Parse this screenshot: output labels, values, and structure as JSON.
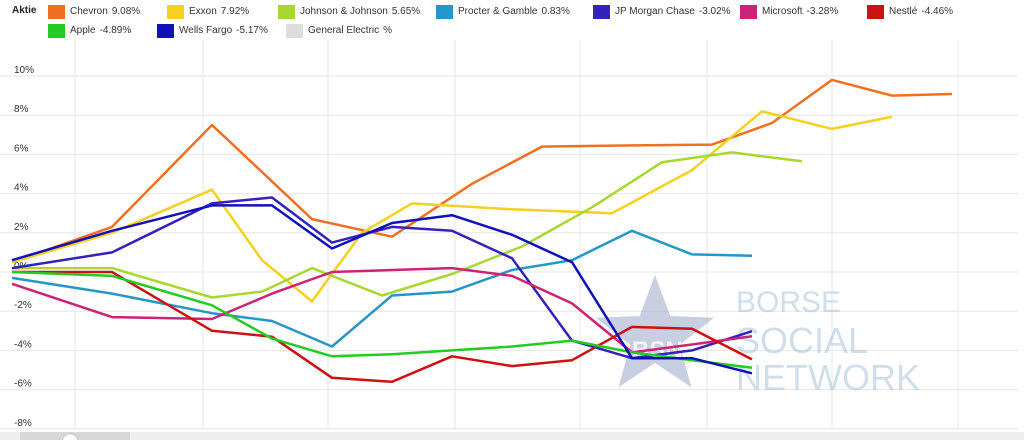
{
  "legend": {
    "title": "Aktie"
  },
  "chart_data": {
    "type": "line",
    "ylim": [
      -8,
      11
    ],
    "y_ticks": [
      -8,
      -6,
      -4,
      -2,
      0,
      2,
      4,
      6,
      8,
      10
    ],
    "y_tick_labels": [
      "-8%",
      "-6%",
      "-4%",
      "-2%",
      "0%",
      "2%",
      "4%",
      "6%",
      "8%",
      "10%"
    ],
    "grid": true,
    "legend_position": "top",
    "series": [
      {
        "name": "Chevron",
        "value_label": "9.08%",
        "color": "#f07020",
        "points": [
          [
            0,
            0.5
          ],
          [
            1,
            2.3
          ],
          [
            2,
            7.5
          ],
          [
            3,
            2.7
          ],
          [
            3.8,
            1.8
          ],
          [
            4.6,
            4.5
          ],
          [
            5.3,
            6.4
          ],
          [
            6,
            6.45
          ],
          [
            7,
            6.5
          ],
          [
            7.6,
            7.6
          ],
          [
            8.2,
            9.8
          ],
          [
            8.8,
            9.0
          ],
          [
            9.4,
            9.08
          ]
        ]
      },
      {
        "name": "Exxon",
        "value_label": "7.92%",
        "color": "#f5d020",
        "points": [
          [
            0,
            0.5
          ],
          [
            1,
            2.0
          ],
          [
            2,
            4.2
          ],
          [
            2.5,
            0.6
          ],
          [
            3,
            -1.5
          ],
          [
            3.5,
            2.0
          ],
          [
            4,
            3.5
          ],
          [
            5,
            3.2
          ],
          [
            6,
            3.0
          ],
          [
            6.8,
            5.2
          ],
          [
            7.5,
            8.2
          ],
          [
            8.2,
            7.3
          ],
          [
            8.8,
            7.92
          ]
        ]
      },
      {
        "name": "Johnson & Johnson",
        "value_label": "5.65%",
        "color": "#a8d830",
        "points": [
          [
            0,
            0.2
          ],
          [
            1,
            0.2
          ],
          [
            2,
            -1.3
          ],
          [
            2.5,
            -1.0
          ],
          [
            3,
            0.2
          ],
          [
            3.7,
            -1.2
          ],
          [
            4.4,
            -0.1
          ],
          [
            5.1,
            1.3
          ],
          [
            5.8,
            3.3
          ],
          [
            6.5,
            5.6
          ],
          [
            7.2,
            6.1
          ],
          [
            7.9,
            5.65
          ]
        ]
      },
      {
        "name": "Procter & Gamble",
        "value_label": "0.83%",
        "color": "#2596c8",
        "points": [
          [
            0,
            -0.3
          ],
          [
            1,
            -1.1
          ],
          [
            2,
            -2.1
          ],
          [
            2.6,
            -2.5
          ],
          [
            3.2,
            -3.8
          ],
          [
            3.8,
            -1.2
          ],
          [
            4.4,
            -1.0
          ],
          [
            5,
            0.1
          ],
          [
            5.6,
            0.6
          ],
          [
            6.2,
            2.1
          ],
          [
            6.8,
            0.9
          ],
          [
            7.4,
            0.83
          ]
        ]
      },
      {
        "name": "JP Morgan Chase",
        "value_label": "-3.02%",
        "color": "#3322bb",
        "points": [
          [
            0,
            0.2
          ],
          [
            1,
            1.0
          ],
          [
            2,
            3.5
          ],
          [
            2.6,
            3.8
          ],
          [
            3.2,
            1.5
          ],
          [
            3.8,
            2.3
          ],
          [
            4.4,
            2.1
          ],
          [
            5,
            0.7
          ],
          [
            5.6,
            -3.5
          ],
          [
            6.2,
            -4.4
          ],
          [
            6.8,
            -4.0
          ],
          [
            7.4,
            -3.02
          ]
        ]
      },
      {
        "name": "Microsoft",
        "value_label": "-3.28%",
        "color": "#cc2277",
        "points": [
          [
            0,
            -0.6
          ],
          [
            1,
            -2.3
          ],
          [
            2,
            -2.4
          ],
          [
            2.6,
            -1.1
          ],
          [
            3.2,
            0.0
          ],
          [
            3.8,
            0.1
          ],
          [
            4.4,
            0.2
          ],
          [
            5,
            -0.2
          ],
          [
            5.6,
            -1.6
          ],
          [
            6.2,
            -4.1
          ],
          [
            6.8,
            -3.7
          ],
          [
            7.4,
            -3.28
          ]
        ]
      },
      {
        "name": "Nestlé",
        "value_label": "-4.46%",
        "color": "#cc1111",
        "points": [
          [
            0,
            0.0
          ],
          [
            1,
            0.0
          ],
          [
            2,
            -3.0
          ],
          [
            2.6,
            -3.3
          ],
          [
            3.2,
            -5.4
          ],
          [
            3.8,
            -5.6
          ],
          [
            4.4,
            -4.3
          ],
          [
            5,
            -4.8
          ],
          [
            5.6,
            -4.5
          ],
          [
            6.2,
            -2.8
          ],
          [
            6.8,
            -2.9
          ],
          [
            7.4,
            -4.46
          ]
        ]
      },
      {
        "name": "Apple",
        "value_label": "-4.89%",
        "color": "#22cc22",
        "points": [
          [
            0,
            0.0
          ],
          [
            1,
            -0.2
          ],
          [
            2,
            -1.7
          ],
          [
            2.6,
            -3.4
          ],
          [
            3.2,
            -4.3
          ],
          [
            3.8,
            -4.2
          ],
          [
            4.4,
            -4.0
          ],
          [
            5,
            -3.8
          ],
          [
            5.6,
            -3.5
          ],
          [
            6.2,
            -4.1
          ],
          [
            6.8,
            -4.5
          ],
          [
            7.4,
            -4.89
          ]
        ]
      },
      {
        "name": "Wells Fargo",
        "value_label": "-5.17%",
        "color": "#1111bb",
        "points": [
          [
            0,
            0.6
          ],
          [
            1,
            2.1
          ],
          [
            2,
            3.4
          ],
          [
            2.6,
            3.4
          ],
          [
            3.2,
            1.2
          ],
          [
            3.8,
            2.5
          ],
          [
            4.4,
            2.9
          ],
          [
            5,
            1.9
          ],
          [
            5.6,
            0.5
          ],
          [
            6.2,
            -4.4
          ],
          [
            6.8,
            -4.4
          ],
          [
            7.4,
            -5.17
          ]
        ]
      },
      {
        "name": "General Electric",
        "value_label": "%",
        "color": "#dddddd",
        "points": []
      }
    ]
  },
  "watermark": {
    "logo_text": "BSN",
    "line1": "BORSE",
    "line2": "SOCIAL",
    "line3": "NETWORK",
    "star_color": "#9aa8c8",
    "text_color": "#a8c4dc"
  }
}
